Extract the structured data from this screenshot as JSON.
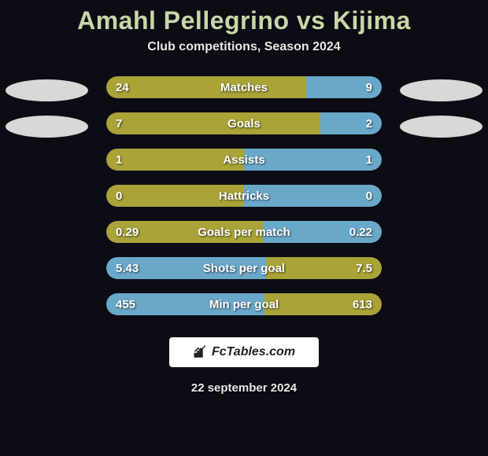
{
  "title": {
    "player1": "Amahl Pellegrino",
    "vs": "vs",
    "player2": "Kijima"
  },
  "subtitle": "Club competitions, Season 2024",
  "colors": {
    "left": "#a9a338",
    "right": "#6aa8c9",
    "bg_track": "#1a1a24"
  },
  "stats": [
    {
      "label": "Matches",
      "left_val": "24",
      "right_val": "9",
      "left_pct": 72.7,
      "right_pct": 27.3,
      "left_color": "#a9a338",
      "right_color": "#6aa8c9"
    },
    {
      "label": "Goals",
      "left_val": "7",
      "right_val": "2",
      "left_pct": 77.8,
      "right_pct": 22.2,
      "left_color": "#a9a338",
      "right_color": "#6aa8c9"
    },
    {
      "label": "Assists",
      "left_val": "1",
      "right_val": "1",
      "left_pct": 50.0,
      "right_pct": 50.0,
      "left_color": "#a9a338",
      "right_color": "#6aa8c9"
    },
    {
      "label": "Hattricks",
      "left_val": "0",
      "right_val": "0",
      "left_pct": 50.0,
      "right_pct": 50.0,
      "left_color": "#a9a338",
      "right_color": "#6aa8c9"
    },
    {
      "label": "Goals per match",
      "left_val": "0.29",
      "right_val": "0.22",
      "left_pct": 56.9,
      "right_pct": 43.1,
      "left_color": "#a9a338",
      "right_color": "#6aa8c9"
    },
    {
      "label": "Shots per goal",
      "left_val": "5.43",
      "right_val": "7.5",
      "left_pct": 58.0,
      "right_pct": 42.0,
      "left_color": "#6aa8c9",
      "right_color": "#a9a338"
    },
    {
      "label": "Min per goal",
      "left_val": "455",
      "right_val": "613",
      "left_pct": 57.4,
      "right_pct": 42.6,
      "left_color": "#6aa8c9",
      "right_color": "#a9a338"
    }
  ],
  "branding_text": "FcTables.com",
  "date": "22 september 2024"
}
